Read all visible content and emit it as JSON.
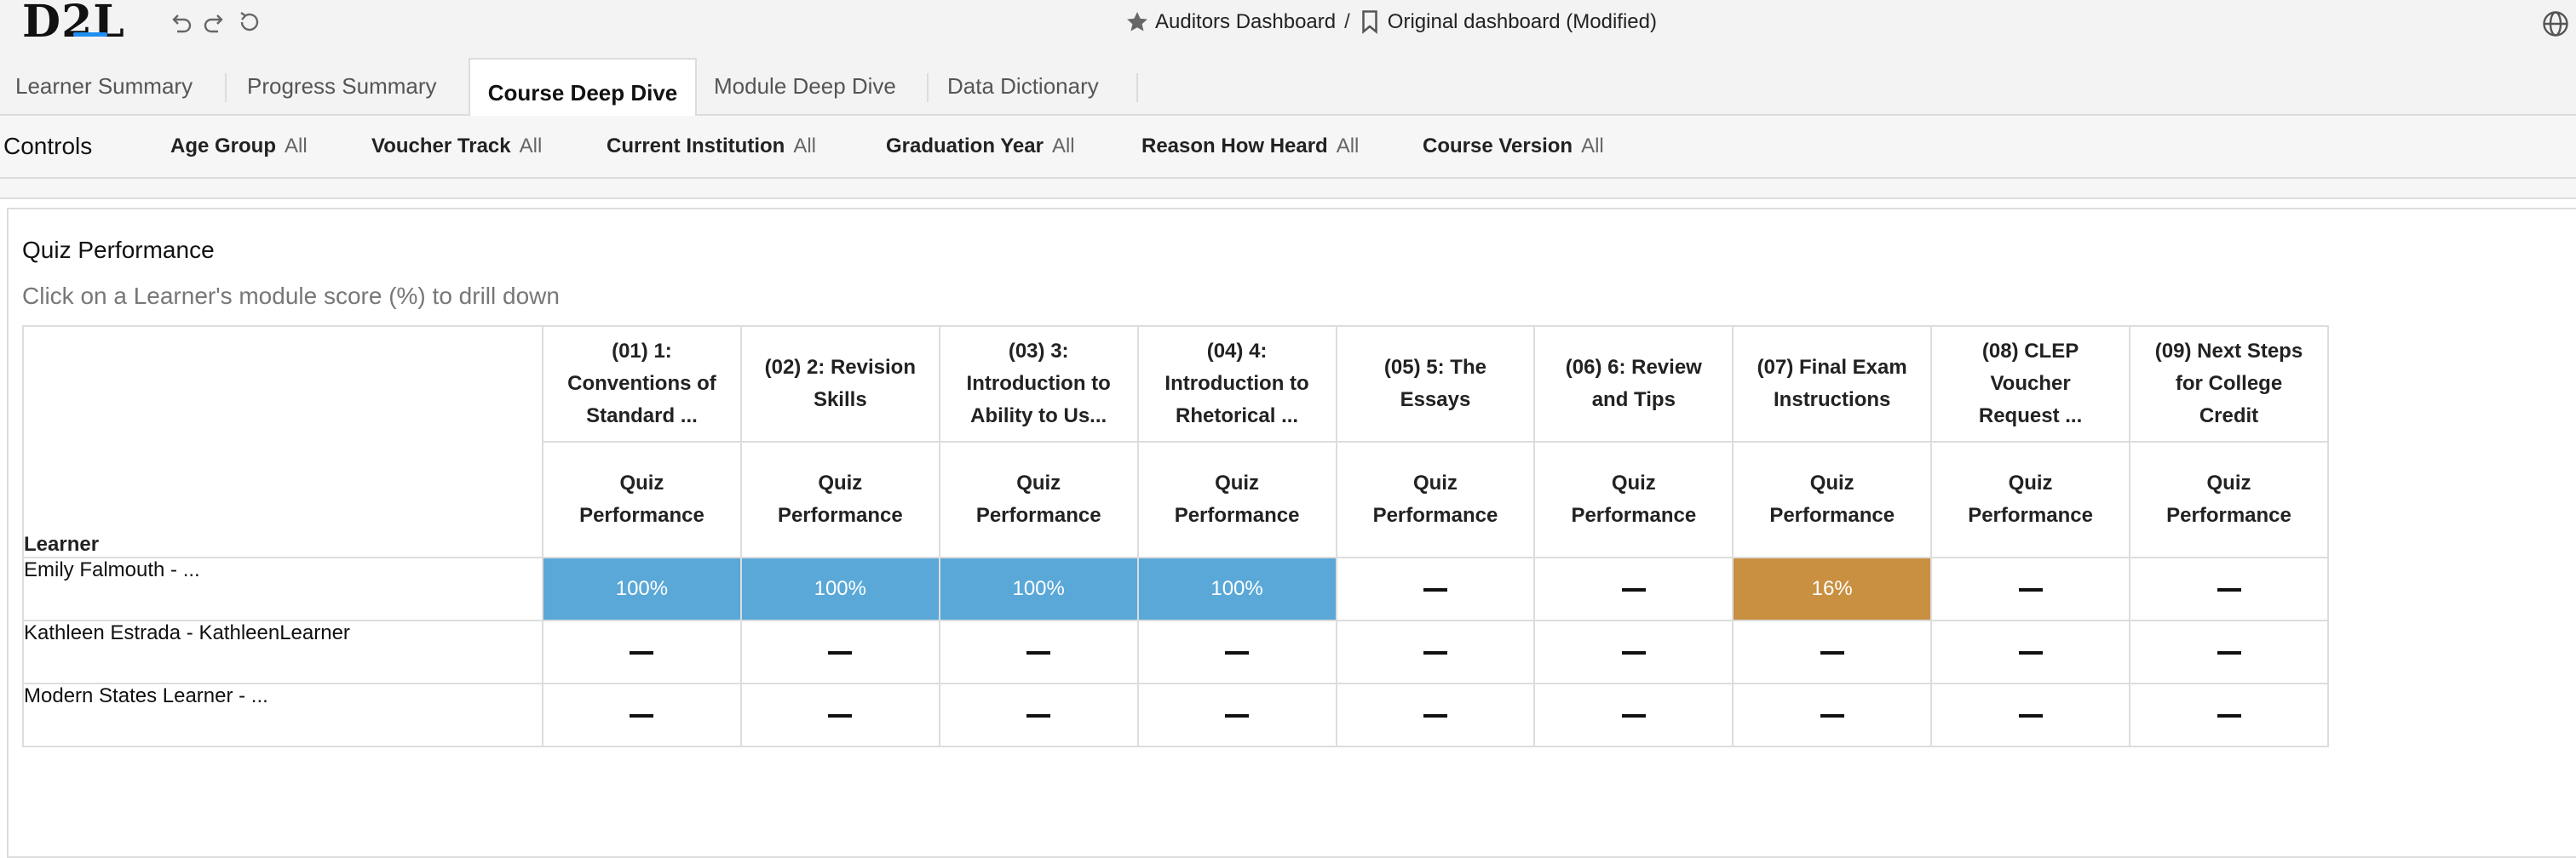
{
  "app": {
    "logo_text": "D2L",
    "dashboard_name": "Auditors Dashboard",
    "separator": "/",
    "view_name": "Original dashboard (Modified)"
  },
  "tabs": [
    {
      "label": "Learner Summary",
      "active": false
    },
    {
      "label": "Progress Summary",
      "active": false
    },
    {
      "label": "Course Deep Dive",
      "active": true
    },
    {
      "label": "Module Deep Dive",
      "active": false
    },
    {
      "label": "Data Dictionary",
      "active": false
    }
  ],
  "controls": {
    "title": "Controls",
    "filters": [
      {
        "label": "Age Group",
        "value": "All"
      },
      {
        "label": "Voucher Track",
        "value": "All"
      },
      {
        "label": "Current Institution",
        "value": "All"
      },
      {
        "label": "Graduation Year",
        "value": "All"
      },
      {
        "label": "Reason How Heard",
        "value": "All"
      },
      {
        "label": "Course Version",
        "value": "All"
      }
    ]
  },
  "panel": {
    "title": "Quiz Performance",
    "subtitle": "Click on a Learner's module score (%) to drill down"
  },
  "table": {
    "learner_header": "Learner",
    "modules": [
      {
        "line1": "(01) 1:",
        "line2": "Conventions of",
        "line3": "Standard ..."
      },
      {
        "line1": "(02) 2: Revision",
        "line2": "Skills",
        "line3": ""
      },
      {
        "line1": "(03) 3:",
        "line2": "Introduction to",
        "line3": "Ability to Us..."
      },
      {
        "line1": "(04) 4:",
        "line2": "Introduction to",
        "line3": "Rhetorical ..."
      },
      {
        "line1": "(05) 5: The",
        "line2": "Essays",
        "line3": ""
      },
      {
        "line1": "(06) 6: Review",
        "line2": "and Tips",
        "line3": ""
      },
      {
        "line1": "(07) Final Exam",
        "line2": "Instructions",
        "line3": ""
      },
      {
        "line1": "(08) CLEP",
        "line2": "Voucher",
        "line3": "Request ..."
      },
      {
        "line1": "(09) Next Steps",
        "line2": "for College",
        "line3": "Credit"
      }
    ],
    "sub_header": {
      "line1": "Quiz",
      "line2": "Performance"
    },
    "rows": [
      {
        "learner": "Emily Falmouth - ...",
        "cells": [
          "100%",
          "100%",
          "100%",
          "100%",
          "",
          "",
          "16%",
          "",
          ""
        ]
      },
      {
        "learner": "Kathleen Estrada - KathleenLearner",
        "cells": [
          "",
          "",
          "",
          "",
          "",
          "",
          "",
          "",
          ""
        ]
      },
      {
        "learner": "Modern States Learner - ...",
        "cells": [
          "",
          "",
          "",
          "",
          "",
          "",
          "",
          "",
          ""
        ]
      }
    ]
  },
  "colors": {
    "score_high": "#5aa8d8",
    "score_low": "#c99042",
    "accent": "#1f8ef1"
  },
  "icons": {
    "undo": "undo-icon",
    "redo": "redo-icon",
    "reset": "reset-icon",
    "star": "star-icon",
    "bookmark": "bookmark-icon",
    "globe": "globe-icon"
  }
}
